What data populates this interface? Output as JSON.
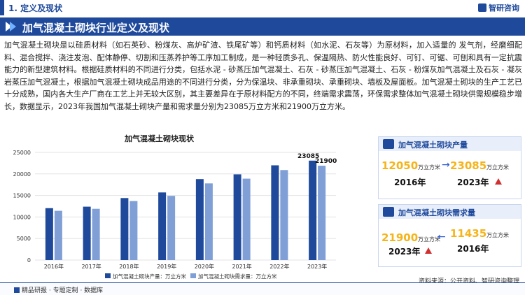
{
  "header": {
    "section": "1. 定义及现状",
    "brand": "智研咨询"
  },
  "title_band": "加气混凝土砌块行业定义及现状",
  "paragraph": "加气混凝土砌块是以硅质材料（如石英砂、粉煤灰、高炉矿渣、铁尾矿等）和钙质材料（如水泥、石灰等）为原材料，加入适量的 发气剂，经磨细配料、混合搅拌、浇注发泡、配体静停、切割和压蒸养护等工序加工制成，是一种轻质多孔、保温隔热、防火性能良好、可钉、可锯、可刨和具有一定抗震能力的新型建筑材料。根据硅质材料的不同进行分类，包括水泥 - 砂蒸压加气混凝土、石灰 - 砂蒸压加气混凝土、石灰 - 粉煤灰加气混凝土及石灰 - 凝灰岩蒸压加气混凝土，根据加气混凝土砌块成品用途的不同进行分类，分为保温块、非承重砌块、承重砌块、墙板及屋面板。加气混凝土砌块的生产工艺已十分成熟，国内各大生产厂商在工艺上并无较大区别，其主要差异在于原材料配方的不同，终端需求震荡，环保需求整体加气混凝土砌块供需规模稳步增长，数据显示，2023年我国加气混凝土砌块产量和需求量分别为23085万立方米和21900万立方米。",
  "chart_data": {
    "type": "bar",
    "title": "加气混凝土砌块现状",
    "categories": [
      "2016年",
      "2017年",
      "2018年",
      "2019年",
      "2020年",
      "2021年",
      "2022年",
      "2023年"
    ],
    "series": [
      {
        "name": "加气混凝土砌块产量：万立方米",
        "color": "#1f4a9c",
        "values": [
          12050,
          12400,
          14400,
          15700,
          18800,
          19900,
          22000,
          23085
        ]
      },
      {
        "name": "加气混凝土砌块需求量：万立方米",
        "color": "#7f9fd6",
        "values": [
          11435,
          11900,
          13700,
          14900,
          17800,
          18900,
          20900,
          21900
        ]
      }
    ],
    "yticks": [
      0,
      5000,
      10000,
      15000,
      20000,
      25000
    ],
    "ylim": [
      0,
      25000
    ],
    "data_labels": [
      {
        "category": "2023年",
        "series": 0,
        "text": "23085"
      },
      {
        "category": "2023年",
        "series": 1,
        "text": "21900"
      }
    ],
    "grid": true,
    "legend": "bottom"
  },
  "card_output": {
    "title": "加气混凝土砌块产量",
    "from_value": "12050",
    "from_unit": "万立方米",
    "from_year": "2016年",
    "to_value": "23085",
    "to_unit": "万立方米",
    "to_year": "2023年"
  },
  "card_demand": {
    "title": "加气混凝土砌块需求量",
    "from_value": "21900",
    "from_unit": "万立方米",
    "from_year": "2023年",
    "to_value": "11435",
    "to_unit": "万立方米",
    "to_year": "2016年"
  },
  "source": "资料来源：公开资料、智研咨询整理",
  "footer": "精品研报 · 专题定制 · 数据库"
}
